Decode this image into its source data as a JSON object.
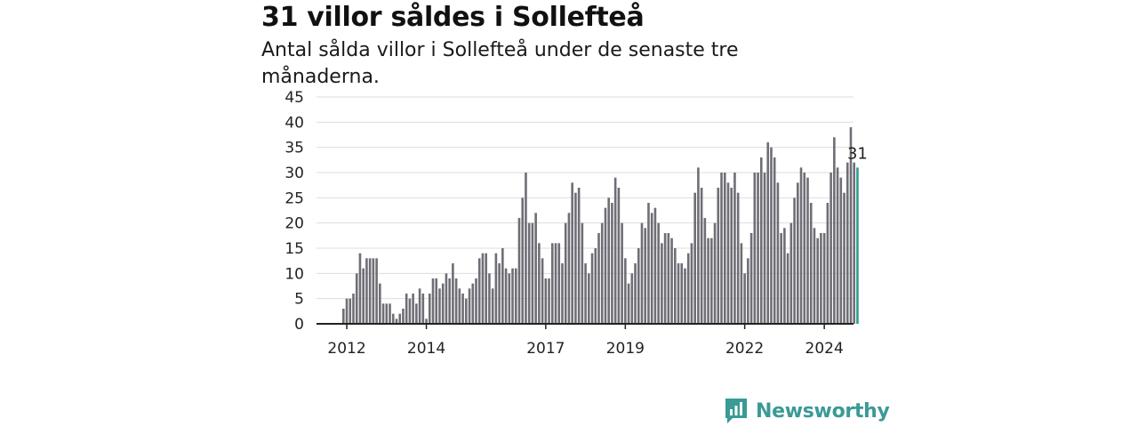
{
  "title": "31 villor såldes i Sollefteå",
  "subtitle": "Antal sålda villor i Sollefteå under de senaste tre månaderna.",
  "brand": "Newsworthy",
  "colors": {
    "bar": "#6e6e76",
    "highlight": "#2a9d8f",
    "grid": "#dddddd",
    "axis": "#222222",
    "brand": "#3a9a96"
  },
  "chart_data": {
    "type": "bar",
    "ylim": [
      0,
      45
    ],
    "yticks": [
      0,
      5,
      10,
      15,
      20,
      25,
      30,
      35,
      40,
      45
    ],
    "xticks": [
      {
        "label": "2012",
        "index": 1
      },
      {
        "label": "2014",
        "index": 25
      },
      {
        "label": "2017",
        "index": 61
      },
      {
        "label": "2019",
        "index": 85
      },
      {
        "label": "2022",
        "index": 121
      },
      {
        "label": "2024",
        "index": 145
      }
    ],
    "values": [
      3,
      5,
      5,
      6,
      10,
      14,
      11,
      13,
      13,
      13,
      13,
      8,
      4,
      4,
      4,
      2,
      1,
      2,
      3,
      6,
      5,
      6,
      4,
      7,
      6,
      1,
      6,
      9,
      9,
      7,
      8,
      10,
      9,
      12,
      9,
      7,
      6,
      5,
      7,
      8,
      9,
      13,
      14,
      14,
      10,
      7,
      14,
      12,
      15,
      11,
      10,
      11,
      11,
      21,
      25,
      30,
      20,
      20,
      22,
      16,
      13,
      9,
      9,
      16,
      16,
      16,
      12,
      20,
      22,
      28,
      26,
      27,
      20,
      12,
      10,
      14,
      15,
      18,
      20,
      23,
      25,
      24,
      29,
      27,
      20,
      13,
      8,
      10,
      12,
      15,
      20,
      19,
      24,
      22,
      23,
      20,
      16,
      18,
      18,
      17,
      15,
      12,
      12,
      11,
      14,
      16,
      26,
      31,
      27,
      21,
      17,
      17,
      20,
      27,
      30,
      30,
      28,
      27,
      30,
      26,
      16,
      10,
      13,
      18,
      30,
      30,
      33,
      30,
      36,
      35,
      33,
      28,
      18,
      19,
      14,
      20,
      25,
      28,
      31,
      30,
      29,
      24,
      19,
      17,
      18,
      18,
      24,
      30,
      37,
      31,
      29,
      26,
      32,
      39,
      32,
      31
    ],
    "highlight_index": 155,
    "annotation": "31"
  }
}
